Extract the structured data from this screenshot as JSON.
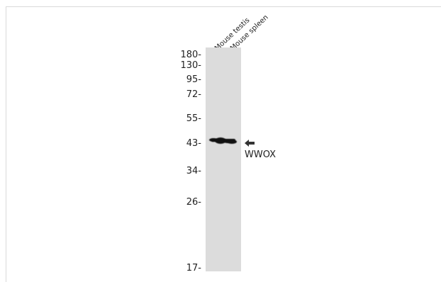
{
  "lanes": [
    {
      "label": "Mouse testis"
    },
    {
      "label": "Mouse spleen"
    }
  ],
  "markers": [
    "180-",
    "130-",
    "95-",
    "72-",
    "55-",
    "43-",
    "34-",
    "26-",
    "17-"
  ],
  "target": {
    "label": "WWOX",
    "marker_kda": 43
  },
  "colors": {
    "membrane": "#dcdcdc",
    "band": "#111111",
    "text": "#222222"
  },
  "icons": {
    "target_pointer": "left-arrow-icon"
  }
}
